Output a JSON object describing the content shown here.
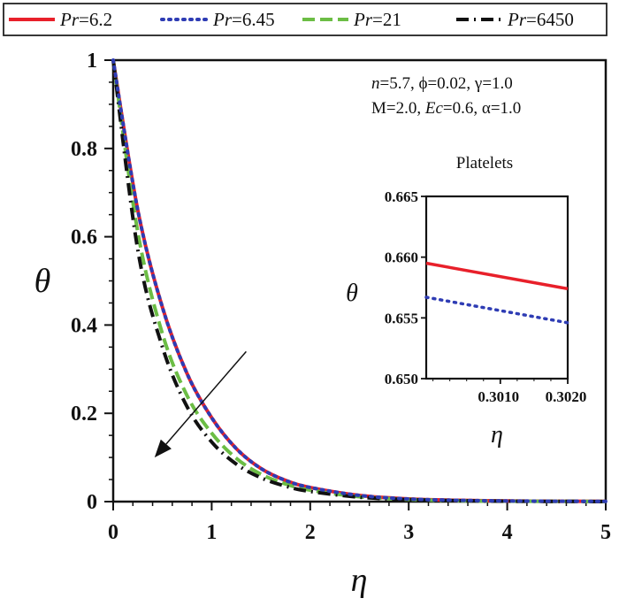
{
  "chart_data": [
    {
      "type": "line",
      "xlabel": "η",
      "ylabel": "θ",
      "xlim": [
        0,
        5
      ],
      "ylim": [
        0,
        1
      ],
      "x_ticks": [
        "0",
        "1",
        "2",
        "3",
        "4",
        "5"
      ],
      "y_ticks": [
        "0",
        "0.2",
        "0.4",
        "0.6",
        "0.8",
        "1"
      ],
      "grid": false,
      "legend_position": "top, outside plot",
      "legend": [
        {
          "prefix": "Pr",
          "value": "=6.2",
          "color": "#e8202a",
          "style": "solid"
        },
        {
          "prefix": "Pr",
          "value": "=6.45",
          "color": "#2e3cb4",
          "style": "dotted"
        },
        {
          "prefix": "Pr",
          "value": "=21",
          "color": "#6cbd45",
          "style": "dash"
        },
        {
          "prefix": "Pr",
          "value": "=6450",
          "color": "#111111",
          "style": "dash-dot"
        }
      ],
      "annotation_lines": [
        [
          {
            "t": "n",
            "i": true
          },
          {
            "t": "=5.7, ϕ=0.02, γ=1.0",
            "i": false
          }
        ],
        [
          {
            "t": "M",
            "i": false
          },
          {
            "t": "=2.0, ",
            "i": false
          },
          {
            "t": "Ec",
            "i": true
          },
          {
            "t": "=0.6, α=1.0",
            "i": false
          }
        ]
      ],
      "arrow": {
        "from": [
          1.35,
          0.34
        ],
        "to": [
          0.42,
          0.1
        ],
        "meaning": "increasing Pr"
      },
      "x": [
        0,
        0.25,
        0.5,
        0.75,
        1.0,
        1.25,
        1.5,
        1.75,
        2.0,
        2.5,
        3.0,
        3.5,
        4.0,
        4.5,
        5.0
      ],
      "series": [
        {
          "name": "Pr=6.2",
          "values": [
            1.0,
            0.66,
            0.44,
            0.29,
            0.19,
            0.12,
            0.075,
            0.048,
            0.032,
            0.014,
            0.006,
            0.003,
            0.0015,
            0.0008,
            0.0005
          ]
        },
        {
          "name": "Pr=6.45",
          "values": [
            1.0,
            0.66,
            0.44,
            0.29,
            0.19,
            0.12,
            0.075,
            0.048,
            0.032,
            0.014,
            0.006,
            0.003,
            0.0015,
            0.0008,
            0.0005
          ]
        },
        {
          "name": "Pr=21",
          "values": [
            1.0,
            0.61,
            0.38,
            0.24,
            0.155,
            0.098,
            0.062,
            0.04,
            0.026,
            0.011,
            0.005,
            0.002,
            0.001,
            0.0005,
            0.0003
          ]
        },
        {
          "name": "Pr=6450",
          "values": [
            1.0,
            0.57,
            0.35,
            0.215,
            0.135,
            0.085,
            0.054,
            0.035,
            0.023,
            0.01,
            0.0045,
            0.002,
            0.001,
            0.0005,
            0.0003
          ]
        }
      ]
    },
    {
      "type": "line",
      "title": "Platelets",
      "xlabel": "η",
      "ylabel": "θ",
      "xlim": [
        0.2999,
        0.302
      ],
      "ylim": [
        0.65,
        0.665
      ],
      "x_ticks": [
        {
          "value": 0.301,
          "label": "0.3010"
        },
        {
          "value": 0.302,
          "label": "0.3020"
        }
      ],
      "y_ticks": [
        {
          "value": 0.65,
          "label": "0.650"
        },
        {
          "value": 0.655,
          "label": "0.655"
        },
        {
          "value": 0.66,
          "label": "0.660"
        },
        {
          "value": 0.665,
          "label": "0.665"
        }
      ],
      "x": [
        0.2999,
        0.302
      ],
      "series": [
        {
          "name": "Pr=6.2",
          "values": [
            0.6595,
            0.6574
          ]
        },
        {
          "name": "Pr=6.45",
          "values": [
            0.6567,
            0.6546
          ]
        }
      ]
    }
  ]
}
